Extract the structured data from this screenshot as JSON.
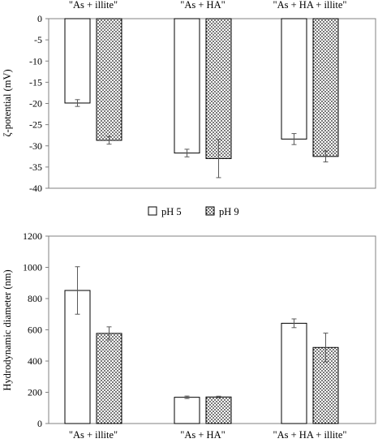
{
  "chart_data": [
    {
      "type": "bar",
      "ylabel": "ζ-potential (mV)",
      "xlabel": "",
      "categories": [
        "\"As + illite\"",
        "\"As + HA\"",
        "\"As + HA + illite\""
      ],
      "ylim": [
        -40,
        0
      ],
      "yticks": [
        0,
        -5,
        -10,
        -15,
        -20,
        -25,
        -30,
        -35,
        -40
      ],
      "category_labels_position": "top",
      "grid": false,
      "series": [
        {
          "name": "pH 5",
          "values": [
            -19.9,
            -31.7,
            -28.4
          ],
          "errors": [
            0.8,
            0.9,
            1.3
          ]
        },
        {
          "name": "pH 9",
          "values": [
            -28.7,
            -33.0,
            -32.5
          ],
          "errors": [
            0.9,
            4.5,
            1.3
          ]
        }
      ]
    },
    {
      "type": "bar",
      "ylabel": "Hydrodynamic diameter (nm)",
      "xlabel": "",
      "categories": [
        "\"As + illite\"",
        "\"As + HA\"",
        "\"As + HA + illite\""
      ],
      "ylim": [
        0,
        1200
      ],
      "yticks": [
        0,
        200,
        400,
        600,
        800,
        1000,
        1200
      ],
      "category_labels_position": "bottom",
      "grid": false,
      "series": [
        {
          "name": "pH 5",
          "values": [
            852,
            168,
            642
          ],
          "errors": [
            152,
            8,
            28
          ]
        },
        {
          "name": "pH 9",
          "values": [
            577,
            170,
            487
          ],
          "errors": [
            42,
            5,
            92
          ]
        }
      ]
    }
  ],
  "legend": {
    "placement": "between charts",
    "items": [
      {
        "label": "pH 5",
        "style": "open"
      },
      {
        "label": "pH 9",
        "style": "dotted"
      }
    ]
  },
  "colors": {
    "axis": "#808080",
    "bar_edge": "#000000",
    "bar_open": "#ffffff",
    "bar_dotted_bg": "#ffffff",
    "bar_dotted_dots": "#1a1a1a",
    "error_bar": "#595959"
  }
}
